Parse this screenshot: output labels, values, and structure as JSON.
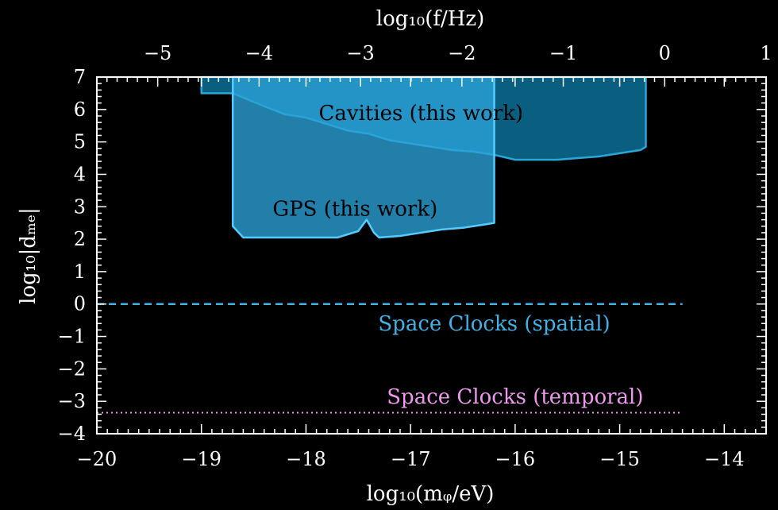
{
  "chart_data": {
    "type": "area",
    "xlabel": "log₁₀(mᵩ/eV)",
    "ylabel": "log₁₀|dₘₑ|",
    "top_xlabel": "log₁₀(f/Hz)",
    "xlim": [
      -20,
      -13.6
    ],
    "ylim": [
      -4,
      7
    ],
    "top_xlim": [
      -5.6,
      1.0
    ],
    "x_ticks": [
      -20,
      -19,
      -18,
      -17,
      -16,
      -15,
      -14
    ],
    "x_tick_labels": [
      "−20",
      "−19",
      "−18",
      "−17",
      "−16",
      "−15",
      "−14"
    ],
    "y_ticks": [
      -4,
      -3,
      -2,
      -1,
      0,
      1,
      2,
      3,
      4,
      5,
      6,
      7
    ],
    "y_tick_labels": [
      "−4",
      "−3",
      "−2",
      "−1",
      "0",
      "1",
      "2",
      "3",
      "4",
      "5",
      "6",
      "7"
    ],
    "top_ticks": [
      -5,
      -4,
      -3,
      -2,
      -1,
      0,
      1
    ],
    "top_tick_labels": [
      "−5",
      "−4",
      "−3",
      "−2",
      "−1",
      "0",
      "1"
    ],
    "colors": {
      "background": "#000000",
      "cavities_fill": "#0a5f80",
      "cavities_edge": "#2aa6d8",
      "gps_fill": "#2aa3d8",
      "gps_edge": "#55ccff",
      "spatial_line": "#3fb3e8",
      "temporal_line": "#ee99ee",
      "axes": "#ffffff"
    },
    "series": [
      {
        "name": "Cavities (this work)",
        "kind": "exclusion_region",
        "x": [
          -19.0,
          -18.7,
          -18.4,
          -18.2,
          -18.0,
          -17.8,
          -17.6,
          -17.4,
          -17.2,
          -17.0,
          -16.8,
          -16.6,
          -16.4,
          -16.2,
          -16.0,
          -15.8,
          -15.6,
          -15.4,
          -15.2,
          -15.0,
          -14.8,
          -14.75
        ],
        "y_lower": [
          6.5,
          6.5,
          6.1,
          5.85,
          5.75,
          5.55,
          5.35,
          5.25,
          5.05,
          4.95,
          4.85,
          4.75,
          4.7,
          4.6,
          4.45,
          4.45,
          4.45,
          4.5,
          4.55,
          4.65,
          4.75,
          4.85
        ],
        "y_upper": 7.0
      },
      {
        "name": "GPS (this work)",
        "kind": "exclusion_region",
        "x": [
          -18.7,
          -18.6,
          -18.5,
          -18.3,
          -18.1,
          -17.9,
          -17.7,
          -17.5,
          -17.42,
          -17.35,
          -17.3,
          -17.1,
          -16.9,
          -16.7,
          -16.5,
          -16.3,
          -16.2
        ],
        "y_lower": [
          2.4,
          2.05,
          2.05,
          2.05,
          2.05,
          2.05,
          2.05,
          2.25,
          2.6,
          2.2,
          2.05,
          2.1,
          2.2,
          2.3,
          2.35,
          2.45,
          2.5
        ],
        "y_upper": 7.0
      },
      {
        "name": "Space Clocks (spatial)",
        "kind": "projection_line",
        "style": "dashed",
        "x": [
          -20.0,
          -14.4
        ],
        "y": [
          0.0,
          0.0
        ]
      },
      {
        "name": "Space Clocks (temporal)",
        "kind": "projection_line",
        "style": "dotted",
        "x": [
          -20.0,
          -14.4
        ],
        "y": [
          -3.35,
          -3.35
        ]
      }
    ],
    "annotations": [
      {
        "text": "Cavities (this work)",
        "x": -16.9,
        "y": 5.9,
        "color": "#000000"
      },
      {
        "text": "GPS (this work)",
        "x": -17.53,
        "y": 2.95,
        "color": "#000000"
      },
      {
        "text": "Space Clocks (spatial)",
        "x": -16.2,
        "y": -0.6,
        "color": "#3fb3e8"
      },
      {
        "text": "Space Clocks (temporal)",
        "x": -16.0,
        "y": -2.85,
        "color": "#ee99ee"
      }
    ]
  }
}
